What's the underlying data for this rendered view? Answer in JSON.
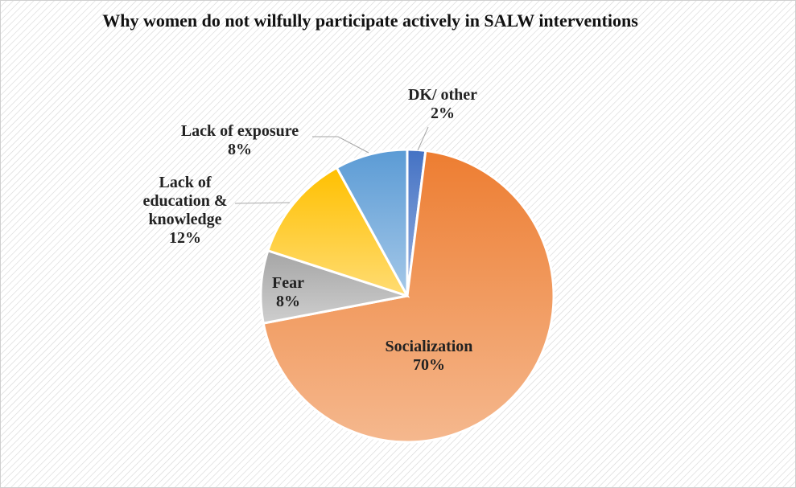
{
  "chart_data": {
    "type": "pie",
    "title": "Why women do not wilfully participate actively in SALW interventions",
    "categories": [
      "DK/ other",
      "Socialization",
      "Fear",
      "Lack of education & knowledge",
      "Lack of exposure"
    ],
    "values": [
      2,
      70,
      8,
      12,
      8
    ],
    "value_labels": [
      "2%",
      "70%",
      "8%",
      "12%",
      "8%"
    ],
    "colors": [
      "#4472c4",
      "#ed7d31",
      "#a5a5a5",
      "#ffc000",
      "#5b9bd5"
    ]
  }
}
